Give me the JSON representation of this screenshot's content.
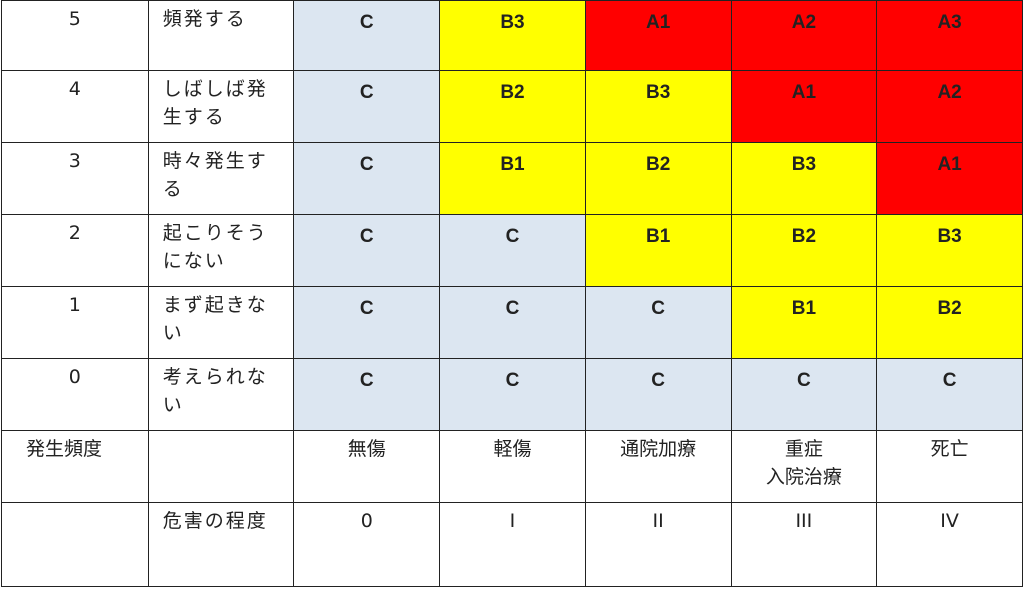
{
  "rows": [
    {
      "num": "5",
      "label": "頻発する",
      "cells": [
        "C",
        "B3",
        "A1",
        "A2",
        "A3"
      ],
      "colors": [
        "blue",
        "yellow",
        "red",
        "red",
        "red"
      ]
    },
    {
      "num": "4",
      "label": "しばしば発生する",
      "cells": [
        "C",
        "B2",
        "B3",
        "A1",
        "A2"
      ],
      "colors": [
        "blue",
        "yellow",
        "yellow",
        "red",
        "red"
      ]
    },
    {
      "num": "3",
      "label": "時々発生する",
      "cells": [
        "C",
        "B1",
        "B2",
        "B3",
        "A1"
      ],
      "colors": [
        "blue",
        "yellow",
        "yellow",
        "yellow",
        "red"
      ]
    },
    {
      "num": "2",
      "label": "起こりそうにない",
      "cells": [
        "C",
        "C",
        "B1",
        "B2",
        "B3"
      ],
      "colors": [
        "blue",
        "blue",
        "yellow",
        "yellow",
        "yellow"
      ]
    },
    {
      "num": "1",
      "label": "まず起きない",
      "cells": [
        "C",
        "C",
        "C",
        "B1",
        "B2"
      ],
      "colors": [
        "blue",
        "blue",
        "blue",
        "yellow",
        "yellow"
      ]
    },
    {
      "num": "0",
      "label": "考えられない",
      "cells": [
        "C",
        "C",
        "C",
        "C",
        "C"
      ],
      "colors": [
        "blue",
        "blue",
        "blue",
        "blue",
        "blue"
      ]
    }
  ],
  "frequency_label": "発生頻度",
  "harm": {
    "label": "危害の程度",
    "categories": [
      "無傷",
      "軽傷",
      "通院加療",
      "重症\n入院治療",
      "死亡"
    ],
    "levels": [
      "0",
      "I",
      "II",
      "III",
      "IV"
    ]
  },
  "colors": {
    "blue": "#dce6f1",
    "yellow": "#ffff00",
    "red": "#ff0000"
  }
}
